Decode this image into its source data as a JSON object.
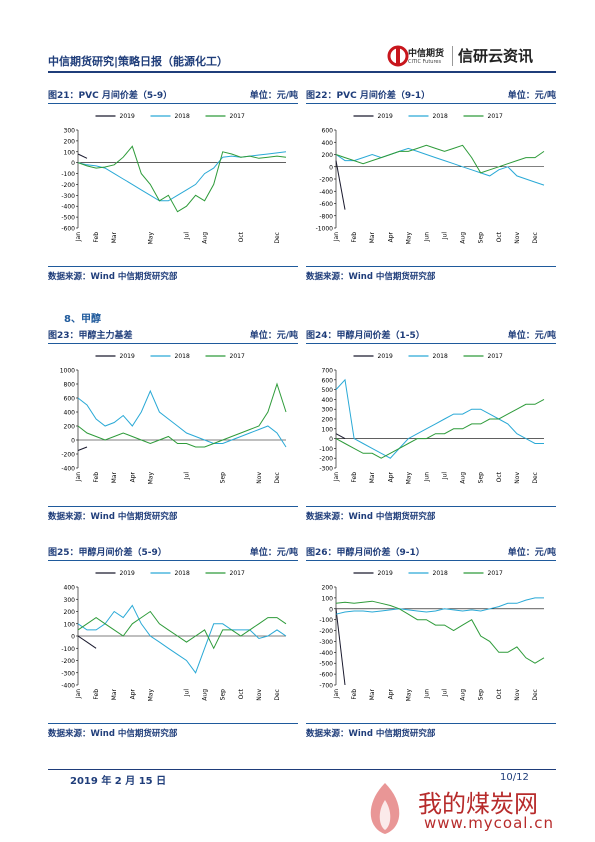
{
  "header": {
    "title": "中信期货研究|策略日报（能源化工）",
    "logo_cn": "中信期货",
    "logo_en": "CITIC Futures",
    "brand": "信研云资讯"
  },
  "section": "8、甲醇",
  "chart_data": [
    {
      "type": "line",
      "title": "图21：PVC 月间价差（5-9）",
      "unit": "单位：元/吨",
      "source": "数据来源：Wind  中信期货研究部",
      "categories": [
        "Jan",
        null,
        "Feb",
        null,
        "Mar",
        null,
        null,
        null,
        "May",
        null,
        null,
        null,
        "Jul",
        null,
        "Aug",
        null,
        null,
        null,
        "Oct",
        null,
        null,
        null,
        "Dec",
        null
      ],
      "ylim": [
        -600,
        300
      ],
      "yticks": [
        -600,
        -500,
        -400,
        -300,
        -200,
        -100,
        0,
        100,
        200,
        300
      ],
      "series": [
        {
          "name": "2019",
          "color": "#1a1a2e",
          "values": [
            80,
            40,
            null,
            null,
            null,
            null,
            null,
            null,
            null,
            null,
            null,
            null,
            null,
            null,
            null,
            null,
            null,
            null,
            null,
            null,
            null,
            null,
            null,
            null
          ]
        },
        {
          "name": "2018",
          "color": "#2aa9d6",
          "values": [
            0,
            -20,
            -30,
            -50,
            -100,
            -150,
            -200,
            -250,
            -300,
            -350,
            -350,
            -300,
            -250,
            -200,
            -100,
            -50,
            50,
            60,
            50,
            60,
            70,
            80,
            90,
            100
          ]
        },
        {
          "name": "2017",
          "color": "#2e9b3a",
          "values": [
            0,
            -30,
            -50,
            -40,
            -20,
            50,
            150,
            -100,
            -200,
            -350,
            -300,
            -450,
            -400,
            -300,
            -350,
            -200,
            100,
            80,
            50,
            60,
            40,
            50,
            60,
            50
          ]
        }
      ]
    },
    {
      "type": "line",
      "title": "图22：PVC 月间价差（9-1）",
      "unit": "单位：元/吨",
      "source": "数据来源：Wind  中信期货研究部",
      "categories": [
        "Jan",
        null,
        "Feb",
        null,
        "Mar",
        null,
        "Apr",
        null,
        "May",
        null,
        "Jun",
        null,
        "Jul",
        null,
        "Aug",
        null,
        "Sep",
        null,
        "Oct",
        null,
        "Nov",
        null,
        "Dec",
        null
      ],
      "ylim": [
        -1000,
        600
      ],
      "yticks": [
        -1000,
        -800,
        -600,
        -400,
        -200,
        0,
        200,
        400,
        600
      ],
      "series": [
        {
          "name": "2019",
          "color": "#1a1a2e",
          "values": [
            100,
            -700,
            null,
            null,
            null,
            null,
            null,
            null,
            null,
            null,
            null,
            null,
            null,
            null,
            null,
            null,
            null,
            null,
            null,
            null,
            null,
            null,
            null,
            null
          ]
        },
        {
          "name": "2018",
          "color": "#2aa9d6",
          "values": [
            200,
            100,
            100,
            150,
            200,
            150,
            200,
            250,
            300,
            250,
            200,
            150,
            100,
            50,
            0,
            -50,
            -100,
            -150,
            -50,
            0,
            -150,
            -200,
            -250,
            -300
          ]
        },
        {
          "name": "2017",
          "color": "#2e9b3a",
          "values": [
            200,
            150,
            100,
            50,
            100,
            150,
            200,
            250,
            250,
            300,
            350,
            300,
            250,
            300,
            350,
            150,
            -100,
            -50,
            0,
            50,
            100,
            150,
            150,
            250
          ]
        }
      ]
    },
    {
      "type": "line",
      "title": "图23：甲醇主力基差",
      "unit": "单位：元/吨",
      "source": "数据来源：Wind  中信期货研究部",
      "categories": [
        "Jan",
        null,
        "Feb",
        null,
        "Mar",
        null,
        "Apr",
        null,
        "May",
        null,
        null,
        null,
        "Jul",
        null,
        null,
        null,
        "Sep",
        null,
        null,
        null,
        "Nov",
        null,
        "Dec",
        null
      ],
      "ylim": [
        -400,
        1000
      ],
      "yticks": [
        -400,
        -200,
        0,
        200,
        400,
        600,
        800,
        1000
      ],
      "series": [
        {
          "name": "2019",
          "color": "#1a1a2e",
          "values": [
            -150,
            -100,
            null,
            null,
            null,
            null,
            null,
            null,
            null,
            null,
            null,
            null,
            null,
            null,
            null,
            null,
            null,
            null,
            null,
            null,
            null,
            null,
            null,
            null
          ]
        },
        {
          "name": "2018",
          "color": "#2aa9d6",
          "values": [
            600,
            500,
            300,
            200,
            250,
            350,
            200,
            400,
            700,
            400,
            300,
            200,
            100,
            50,
            0,
            -50,
            -50,
            0,
            50,
            100,
            150,
            200,
            100,
            -100
          ]
        },
        {
          "name": "2017",
          "color": "#2e9b3a",
          "values": [
            200,
            100,
            50,
            0,
            50,
            100,
            50,
            0,
            -50,
            0,
            50,
            -50,
            -50,
            -100,
            -100,
            -50,
            0,
            50,
            100,
            150,
            200,
            400,
            800,
            400
          ]
        }
      ]
    },
    {
      "type": "line",
      "title": "图24：甲醇月间价差（1-5）",
      "unit": "单位：元/吨",
      "source": "数据来源：Wind  中信期货研究部",
      "categories": [
        "Jan",
        null,
        "Feb",
        null,
        "Mar",
        null,
        "Apr",
        null,
        "May",
        null,
        "Jun",
        null,
        "Jul",
        null,
        "Aug",
        null,
        "Sep",
        null,
        "Oct",
        null,
        "Nov",
        null,
        "Dec",
        null
      ],
      "ylim": [
        -300,
        700
      ],
      "yticks": [
        -300,
        -200,
        -100,
        0,
        100,
        200,
        300,
        400,
        500,
        600,
        700
      ],
      "series": [
        {
          "name": "2019",
          "color": "#1a1a2e",
          "values": [
            50,
            0,
            null,
            null,
            null,
            null,
            null,
            null,
            null,
            null,
            null,
            null,
            null,
            null,
            null,
            null,
            null,
            null,
            null,
            null,
            null,
            null,
            null,
            null
          ]
        },
        {
          "name": "2018",
          "color": "#2aa9d6",
          "values": [
            500,
            600,
            0,
            -50,
            -100,
            -150,
            -200,
            -100,
            0,
            50,
            100,
            150,
            200,
            250,
            250,
            300,
            300,
            250,
            200,
            150,
            50,
            0,
            -50,
            -50
          ]
        },
        {
          "name": "2017",
          "color": "#2e9b3a",
          "values": [
            0,
            -50,
            -100,
            -150,
            -150,
            -200,
            -150,
            -100,
            -50,
            0,
            0,
            50,
            50,
            100,
            100,
            150,
            150,
            200,
            200,
            250,
            300,
            350,
            350,
            400
          ]
        }
      ]
    },
    {
      "type": "line",
      "title": "图25：甲醇月间价差（5-9）",
      "unit": "单位：元/吨",
      "source": "数据来源：Wind  中信期货研究部",
      "categories": [
        "Jan",
        null,
        "Feb",
        null,
        "Mar",
        null,
        "Apr",
        null,
        "May",
        null,
        null,
        null,
        "Jul",
        null,
        "Aug",
        null,
        "Sep",
        null,
        "Oct",
        null,
        "Nov",
        null,
        "Dec",
        null
      ],
      "ylim": [
        -400,
        400
      ],
      "yticks": [
        -400,
        -300,
        -200,
        -100,
        0,
        100,
        200,
        300,
        400
      ],
      "series": [
        {
          "name": "2019",
          "color": "#1a1a2e",
          "values": [
            0,
            -50,
            -100,
            null,
            null,
            null,
            null,
            null,
            null,
            null,
            null,
            null,
            null,
            null,
            null,
            null,
            null,
            null,
            null,
            null,
            null,
            null,
            null,
            null
          ]
        },
        {
          "name": "2018",
          "color": "#2aa9d6",
          "values": [
            100,
            50,
            50,
            100,
            200,
            150,
            250,
            100,
            0,
            -50,
            -100,
            -150,
            -200,
            -300,
            -100,
            100,
            100,
            50,
            50,
            50,
            -20,
            0,
            50,
            0
          ]
        },
        {
          "name": "2017",
          "color": "#2e9b3a",
          "values": [
            50,
            100,
            150,
            100,
            50,
            0,
            100,
            150,
            200,
            100,
            50,
            0,
            -50,
            0,
            50,
            -100,
            50,
            50,
            0,
            50,
            100,
            150,
            150,
            100
          ]
        }
      ]
    },
    {
      "type": "line",
      "title": "图26：甲醇月间价差（9-1）",
      "unit": "单位：元/吨",
      "source": "数据来源：Wind  中信期货研究部",
      "categories": [
        "Jan",
        null,
        "Feb",
        null,
        "Mar",
        null,
        "Apr",
        null,
        "May",
        null,
        "Jun",
        null,
        "Jul",
        null,
        "Aug",
        null,
        "Sep",
        null,
        "Oct",
        null,
        "Nov",
        null,
        "Dec",
        null
      ],
      "ylim": [
        -700,
        200
      ],
      "yticks": [
        -700,
        -600,
        -500,
        -400,
        -300,
        -200,
        -100,
        0,
        100,
        200
      ],
      "series": [
        {
          "name": "2019",
          "color": "#1a1a2e",
          "values": [
            0,
            -700,
            null,
            null,
            null,
            null,
            null,
            null,
            null,
            null,
            null,
            null,
            null,
            null,
            null,
            null,
            null,
            null,
            null,
            null,
            null,
            null,
            null,
            null
          ]
        },
        {
          "name": "2018",
          "color": "#2aa9d6",
          "values": [
            -50,
            -30,
            -20,
            -20,
            -30,
            -20,
            -10,
            0,
            -10,
            -20,
            -30,
            -20,
            0,
            -10,
            -20,
            -10,
            -20,
            0,
            20,
            50,
            50,
            80,
            100,
            100
          ]
        },
        {
          "name": "2017",
          "color": "#2e9b3a",
          "values": [
            50,
            60,
            50,
            60,
            70,
            50,
            30,
            0,
            -50,
            -100,
            -100,
            -150,
            -150,
            -200,
            -150,
            -100,
            -250,
            -300,
            -400,
            -400,
            -350,
            -450,
            -500,
            -450
          ]
        }
      ]
    }
  ],
  "footer": {
    "date": "2019 年 2 月 15 日",
    "page": "10/12"
  },
  "watermark": {
    "title": "我的煤炭网",
    "url": "www.mycoal.cn"
  }
}
